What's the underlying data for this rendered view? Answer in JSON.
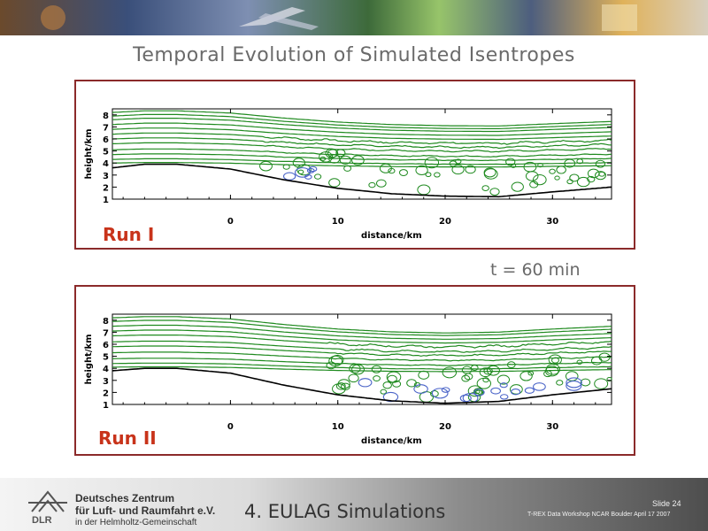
{
  "slide_title": "Temporal Evolution of Simulated Isentropes",
  "time_label": "t = 60 min",
  "footer": {
    "org_line1": "Deutsches Zentrum",
    "org_line2": "für Luft- und Raumfahrt e.V.",
    "org_line3": "in der Helmholtz-Gemeinschaft",
    "logo_text": "DLR",
    "title": "4. EULAG Simulations",
    "slide_number": "Slide 24",
    "workshop": "T-REX Data Workshop NCAR Boulder April 17 2007"
  },
  "colors": {
    "isentrope": "#1f8a1f",
    "eddies": "#4a64c8",
    "terrain": "#000000",
    "panel_border": "#8b2a2a",
    "run_label": "#c8331a"
  },
  "chart_data": [
    {
      "type": "line",
      "label": "Run I",
      "xlabel": "distance/km",
      "ylabel": "height/km",
      "xlim": [
        -11,
        35.5
      ],
      "ylim": [
        1,
        8.5
      ],
      "xticks": [
        0,
        10,
        20,
        30
      ],
      "yticks": [
        1,
        2,
        3,
        4,
        5,
        6,
        7,
        8
      ],
      "terrain": {
        "x": [
          -11,
          -8,
          -5,
          0,
          5,
          10,
          15,
          20,
          25,
          30,
          35.5
        ],
        "y": [
          3.6,
          3.9,
          3.9,
          3.5,
          2.6,
          1.9,
          1.45,
          1.25,
          1.2,
          1.6,
          2.0
        ]
      },
      "isentropes": {
        "levels": [
          8.2,
          7.9,
          7.6,
          7.2,
          6.8,
          6.4,
          6.0,
          5.6,
          5.1,
          4.7,
          4.3,
          4.0
        ],
        "turbulent_x_range": [
          3,
          35.5
        ],
        "eddy_x_range": [
          4,
          9
        ]
      }
    },
    {
      "type": "line",
      "label": "Run II",
      "xlabel": "distance/km",
      "ylabel": "height/km",
      "xlim": [
        -11,
        35.5
      ],
      "ylim": [
        1,
        8.5
      ],
      "xticks": [
        0,
        10,
        20,
        30
      ],
      "yticks": [
        1,
        2,
        3,
        4,
        5,
        6,
        7,
        8
      ],
      "terrain": {
        "x": [
          -11,
          -8,
          -5,
          0,
          5,
          10,
          15,
          20,
          25,
          30,
          35.5
        ],
        "y": [
          3.8,
          4.0,
          4.0,
          3.6,
          2.6,
          1.8,
          1.3,
          1.1,
          1.25,
          1.8,
          2.3
        ]
      },
      "isentropes": {
        "levels": [
          8.2,
          7.9,
          7.5,
          7.1,
          6.7,
          6.2,
          5.8,
          5.3,
          4.8,
          4.4,
          4.1
        ],
        "turbulent_x_range": [
          9,
          35.5
        ],
        "eddy_x_range": [
          10,
          34
        ]
      }
    }
  ]
}
